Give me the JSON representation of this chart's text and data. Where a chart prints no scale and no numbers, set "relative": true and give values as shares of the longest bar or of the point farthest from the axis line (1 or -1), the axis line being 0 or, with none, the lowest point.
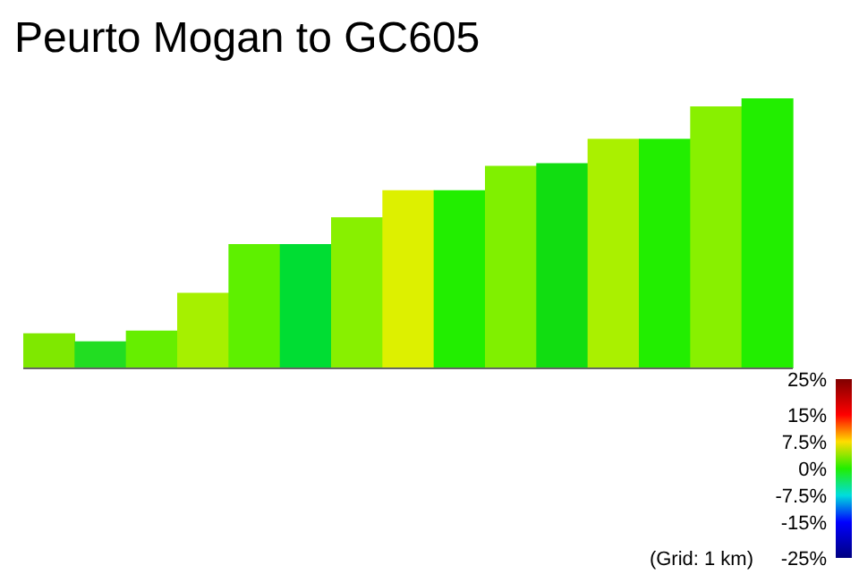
{
  "chart_data": {
    "type": "bar",
    "title": "Peurto Mogan to GC605",
    "relative": true,
    "categories": [
      null,
      null,
      null,
      null,
      null,
      null,
      null,
      null,
      null,
      null,
      null,
      null,
      null,
      null,
      null
    ],
    "values": [
      0.13,
      0.1,
      0.14,
      0.28,
      0.46,
      0.46,
      0.56,
      0.66,
      0.66,
      0.75,
      0.76,
      0.85,
      0.85,
      0.97,
      1
    ],
    "colors": [
      "#7fe800",
      "#22dd22",
      "#66ee00",
      "#a6f000",
      "#5ef000",
      "#00dd33",
      "#88f000",
      "#ddf000",
      "#22ee00",
      "#80f000",
      "#11dd11",
      "#aaf000",
      "#22ee00",
      "#88f000",
      "#22ee00"
    ],
    "clim": [
      -25,
      25
    ],
    "cticks": [
      {
        "value": 25,
        "label": "25%"
      },
      {
        "value": 15,
        "label": "15%"
      },
      {
        "value": 7.5,
        "label": "7.5%"
      },
      {
        "value": 0,
        "label": "0%"
      },
      {
        "value": -7.5,
        "label": "-7.5%"
      },
      {
        "value": -15,
        "label": "-15%"
      },
      {
        "value": -25,
        "label": "-25%"
      }
    ],
    "annotations": [
      "(Grid: 1 km)"
    ]
  }
}
